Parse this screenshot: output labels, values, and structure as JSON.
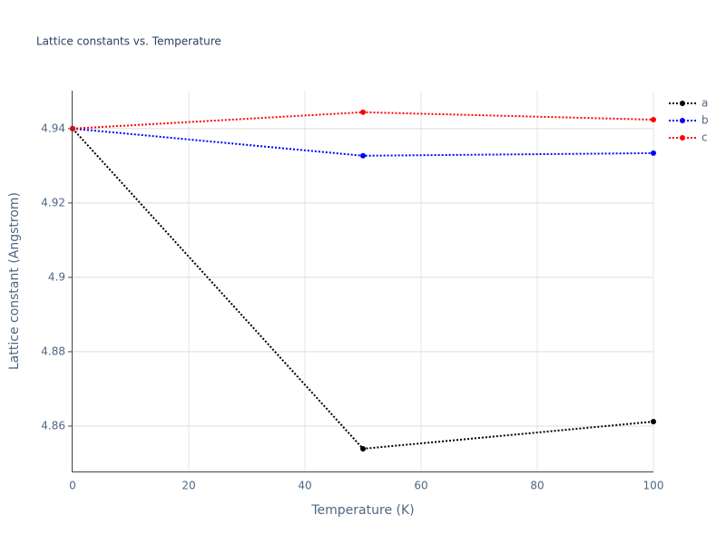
{
  "chart_data": {
    "type": "line",
    "title": "Lattice constants vs. Temperature",
    "x_label": "Temperature (K)",
    "y_label": "Lattice constant (Angstrom)",
    "x": [
      0,
      50,
      100
    ],
    "series": [
      {
        "name": "a",
        "color": "#000000",
        "values": [
          4.94,
          4.8539,
          4.8612
        ]
      },
      {
        "name": "b",
        "color": "#0000ff",
        "values": [
          4.94,
          4.9327,
          4.9334
        ]
      },
      {
        "name": "c",
        "color": "#ff0000",
        "values": [
          4.94,
          4.9444,
          4.9424
        ]
      }
    ],
    "xlim": [
      0,
      100
    ],
    "xticks": [
      0,
      20,
      40,
      60,
      80,
      100
    ],
    "ylim": [
      4.8478,
      4.9502
    ],
    "yticks": [
      4.86,
      4.88,
      4.9,
      4.92,
      4.94
    ],
    "grid": true,
    "legend": "top-right"
  }
}
